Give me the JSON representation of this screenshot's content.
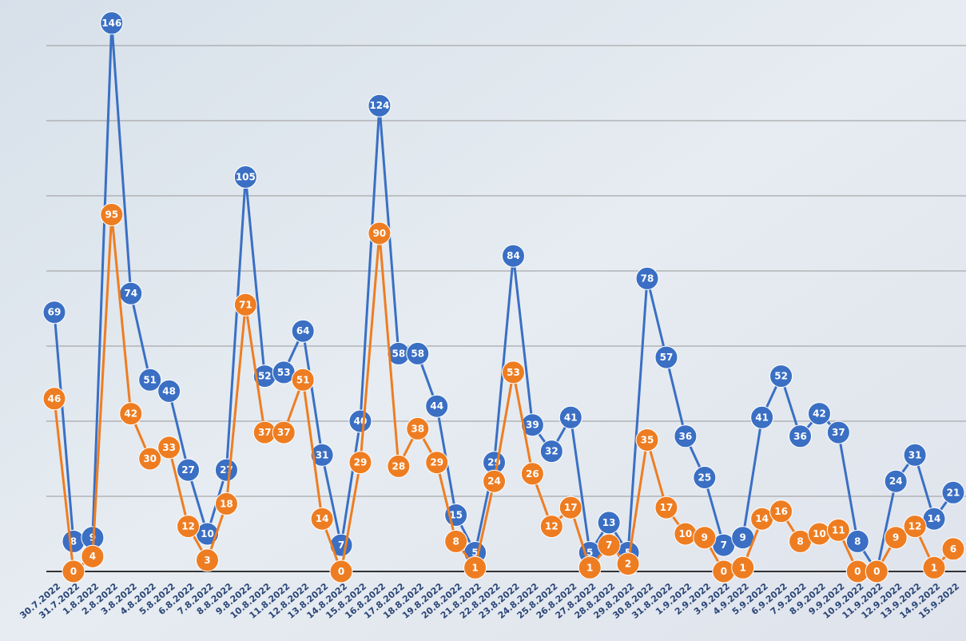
{
  "chart_data": {
    "type": "line",
    "categories": [
      "30.7.2022",
      "31.7.2022",
      "1.8.2022",
      "2.8.2022",
      "3.8.2022",
      "4.8.2022",
      "5.8.2022",
      "6.8.2022",
      "7.8.2022",
      "8.8.2022",
      "9.8.2022",
      "10.8.2022",
      "11.8.2022",
      "12.8.2022",
      "13.8.2022",
      "14.8.2022",
      "15.8.2022",
      "16.8.2022",
      "17.8.2022",
      "18.8.2022",
      "19.8.2022",
      "20.8.2022",
      "21.8.2022",
      "22.8.2022",
      "23.8.2022",
      "24.8.2022",
      "25.8.2022",
      "26.8.2022",
      "27.8.2022",
      "28.8.2022",
      "29.8.2022",
      "30.8.2022",
      "31.8.2022",
      "1.9.2022",
      "2.9.2022",
      "3.9.2022",
      "4.9.2022",
      "5.9.2022",
      "6.9.2022",
      "7.9.2022",
      "8.9.2022",
      "9.9.2022",
      "10.9.2022",
      "11.9.2022",
      "12.9.2022",
      "13.9.2022",
      "14.9.2022",
      "15.9.2022"
    ],
    "series": [
      {
        "color": "#3a6fc4",
        "values": [
          69,
          8,
          9,
          146,
          74,
          51,
          48,
          27,
          10,
          27,
          105,
          52,
          53,
          64,
          31,
          7,
          40,
          124,
          58,
          58,
          44,
          15,
          5,
          29,
          84,
          39,
          32,
          41,
          5,
          13,
          5,
          78,
          57,
          36,
          25,
          7,
          9,
          41,
          52,
          36,
          42,
          37,
          8,
          0,
          24,
          31,
          14,
          21
        ]
      },
      {
        "color": "#ee7d22",
        "values": [
          46,
          0,
          4,
          95,
          42,
          30,
          33,
          12,
          3,
          18,
          71,
          37,
          37,
          51,
          14,
          0,
          29,
          90,
          28,
          38,
          29,
          8,
          1,
          24,
          53,
          26,
          12,
          17,
          1,
          7,
          2,
          35,
          17,
          10,
          9,
          0,
          1,
          14,
          16,
          8,
          10,
          11,
          0,
          0,
          9,
          12,
          1,
          6
        ]
      }
    ],
    "ylim": [
      0,
      150
    ],
    "yticks": [
      0,
      20,
      40,
      60,
      80,
      100,
      120,
      140
    ],
    "grid": true
  }
}
